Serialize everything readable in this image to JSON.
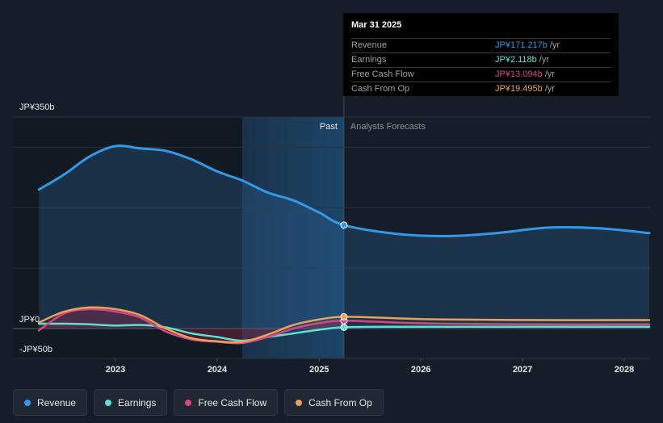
{
  "chart_data": {
    "type": "line",
    "y_axis": {
      "unit": "JP¥ billions",
      "range": [
        -50,
        350
      ],
      "tick_labels": [
        "JP¥350b",
        "JP¥0",
        "-JP¥50b"
      ],
      "tick_values": [
        350,
        0,
        -50
      ]
    },
    "x_axis": {
      "range": [
        "2022-04-01",
        "2028-03-31"
      ],
      "tick_labels": [
        "2023",
        "2024",
        "2025",
        "2026",
        "2027",
        "2028"
      ]
    },
    "regions": {
      "past_label": "Past",
      "forecast_label": "Analysts Forecasts",
      "split_date": "2025-03-31",
      "shade_start": "2024-03-31"
    },
    "grid": true,
    "series": [
      {
        "name": "Revenue",
        "color": "#3498e6",
        "fill": true,
        "points": [
          [
            "2022-04-01",
            230
          ],
          [
            "2022-07-01",
            255
          ],
          [
            "2022-10-01",
            285
          ],
          [
            "2023-01-01",
            302
          ],
          [
            "2023-04-01",
            298
          ],
          [
            "2023-07-01",
            294
          ],
          [
            "2023-10-01",
            280
          ],
          [
            "2024-01-01",
            260
          ],
          [
            "2024-03-31",
            245
          ],
          [
            "2024-07-01",
            225
          ],
          [
            "2024-10-01",
            212
          ],
          [
            "2025-01-01",
            192
          ],
          [
            "2025-03-31",
            171.217
          ],
          [
            "2025-10-01",
            157
          ],
          [
            "2026-03-31",
            153
          ],
          [
            "2026-10-01",
            158
          ],
          [
            "2027-03-31",
            167
          ],
          [
            "2027-10-01",
            166
          ],
          [
            "2028-03-31",
            158
          ]
        ]
      },
      {
        "name": "Earnings",
        "color": "#5ee0d3",
        "points": [
          [
            "2022-04-01",
            8
          ],
          [
            "2022-07-01",
            8
          ],
          [
            "2022-10-01",
            7
          ],
          [
            "2023-01-01",
            5
          ],
          [
            "2023-04-01",
            6
          ],
          [
            "2023-07-01",
            2
          ],
          [
            "2023-10-01",
            -8
          ],
          [
            "2024-01-01",
            -14
          ],
          [
            "2024-03-31",
            -20
          ],
          [
            "2024-07-01",
            -14
          ],
          [
            "2024-10-01",
            -8
          ],
          [
            "2025-01-01",
            -2
          ],
          [
            "2025-03-31",
            2.118
          ],
          [
            "2025-10-01",
            3
          ],
          [
            "2026-03-31",
            3
          ],
          [
            "2027-03-31",
            3
          ],
          [
            "2028-03-31",
            3
          ]
        ]
      },
      {
        "name": "Free Cash Flow",
        "color": "#d9467f",
        "points": [
          [
            "2022-04-01",
            -3
          ],
          [
            "2022-07-01",
            25
          ],
          [
            "2022-10-01",
            32
          ],
          [
            "2023-01-01",
            28
          ],
          [
            "2023-04-01",
            18
          ],
          [
            "2023-07-01",
            -5
          ],
          [
            "2023-10-01",
            -18
          ],
          [
            "2024-01-01",
            -22
          ],
          [
            "2024-03-31",
            -24
          ],
          [
            "2024-07-01",
            -14
          ],
          [
            "2024-10-01",
            0
          ],
          [
            "2025-01-01",
            9
          ],
          [
            "2025-03-31",
            13.094
          ],
          [
            "2025-10-01",
            10
          ],
          [
            "2026-03-31",
            8
          ],
          [
            "2027-03-31",
            7
          ],
          [
            "2028-03-31",
            7
          ]
        ]
      },
      {
        "name": "Cash From Op",
        "color": "#e8a35a",
        "points": [
          [
            "2022-04-01",
            10
          ],
          [
            "2022-07-01",
            28
          ],
          [
            "2022-10-01",
            35
          ],
          [
            "2023-01-01",
            32
          ],
          [
            "2023-04-01",
            22
          ],
          [
            "2023-07-01",
            0
          ],
          [
            "2023-10-01",
            -16
          ],
          [
            "2024-01-01",
            -21
          ],
          [
            "2024-03-31",
            -22
          ],
          [
            "2024-07-01",
            -10
          ],
          [
            "2024-10-01",
            6
          ],
          [
            "2025-01-01",
            15
          ],
          [
            "2025-03-31",
            19.495
          ],
          [
            "2025-10-01",
            17
          ],
          [
            "2026-03-31",
            15
          ],
          [
            "2027-03-31",
            14
          ],
          [
            "2028-03-31",
            14
          ]
        ]
      }
    ]
  },
  "tooltip": {
    "date": "Mar 31 2025",
    "rows": [
      {
        "label": "Revenue",
        "value": "JP¥171.217b",
        "unit": "/yr",
        "color": "#3498e6"
      },
      {
        "label": "Earnings",
        "value": "JP¥2.118b",
        "unit": "/yr",
        "color": "#5ee0d3"
      },
      {
        "label": "Free Cash Flow",
        "value": "JP¥13.094b",
        "unit": "/yr",
        "color": "#d9467f"
      },
      {
        "label": "Cash From Op",
        "value": "JP¥19.495b",
        "unit": "/yr",
        "color": "#e8a35a"
      }
    ]
  },
  "legend": [
    {
      "label": "Revenue",
      "color": "#3498e6"
    },
    {
      "label": "Earnings",
      "color": "#5ee0d3"
    },
    {
      "label": "Free Cash Flow",
      "color": "#d9467f"
    },
    {
      "label": "Cash From Op",
      "color": "#e8a35a"
    }
  ]
}
